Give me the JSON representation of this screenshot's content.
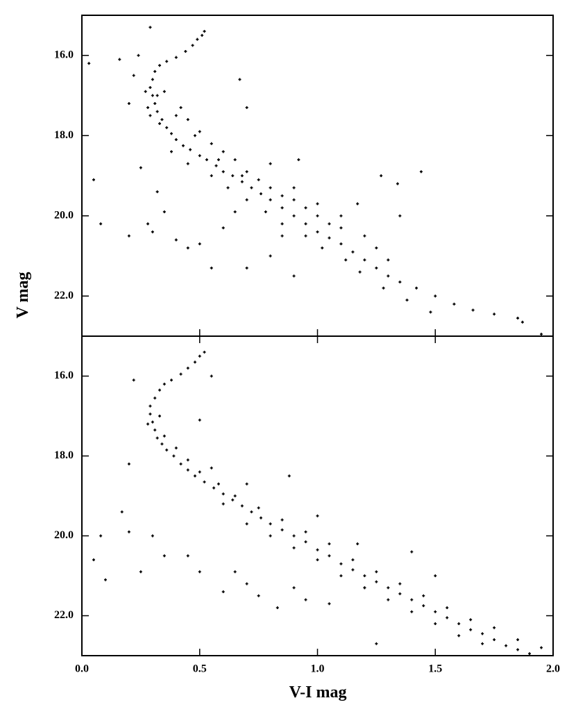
{
  "chart_data": [
    {
      "type": "scatter",
      "ylabel": "V mag",
      "color": "#000000",
      "xlim": [
        0,
        2
      ],
      "ylim": [
        23,
        15
      ],
      "yticks": [
        {
          "value": 16,
          "label": "16.0"
        },
        {
          "value": 18,
          "label": "18.0"
        },
        {
          "value": 20,
          "label": "20.0"
        },
        {
          "value": 22,
          "label": "22.0"
        }
      ],
      "x": [
        0.52,
        0.51,
        0.49,
        0.47,
        0.44,
        0.4,
        0.36,
        0.33,
        0.31,
        0.3,
        0.29,
        0.3,
        0.31,
        0.32,
        0.34,
        0.36,
        0.38,
        0.4,
        0.43,
        0.46,
        0.5,
        0.53,
        0.57,
        0.6,
        0.64,
        0.68,
        0.72,
        0.76,
        0.8,
        0.85,
        0.9,
        0.95,
        1.0,
        1.05,
        1.1,
        1.15,
        1.2,
        1.25,
        1.3,
        1.35,
        1.42,
        1.5,
        1.58,
        1.66,
        1.75,
        1.85,
        1.87,
        1.95,
        0.35,
        0.42,
        0.45,
        0.5,
        0.55,
        0.6,
        0.65,
        0.7,
        0.75,
        0.8,
        0.85,
        0.9,
        0.95,
        1.0,
        1.05,
        1.1,
        0.27,
        0.28,
        0.33,
        0.38,
        0.45,
        0.55,
        0.62,
        0.7,
        0.78,
        0.85,
        0.95,
        1.02,
        1.12,
        1.18,
        1.28,
        1.38,
        1.48,
        0.32,
        0.29,
        0.4,
        0.48,
        0.58,
        0.68,
        0.9,
        1.0,
        1.1,
        1.2,
        1.25,
        1.3,
        0.03,
        0.05,
        0.08,
        0.16,
        0.2,
        0.2,
        0.22,
        0.25,
        0.28,
        0.3,
        0.32,
        0.35,
        0.4,
        0.45,
        0.5,
        0.55,
        0.6,
        0.65,
        0.7,
        0.8,
        0.85,
        0.9,
        0.92,
        1.27,
        1.34,
        1.44,
        1.35,
        1.17,
        0.7,
        0.67,
        0.8,
        0.29,
        0.24
      ],
      "values": [
        15.4,
        15.5,
        15.6,
        15.75,
        15.9,
        16.05,
        16.15,
        16.25,
        16.4,
        16.6,
        16.8,
        17.0,
        17.2,
        17.4,
        17.6,
        17.8,
        17.95,
        18.1,
        18.25,
        18.35,
        18.5,
        18.6,
        18.75,
        18.9,
        19.0,
        19.15,
        19.3,
        19.45,
        19.6,
        19.8,
        20.0,
        20.2,
        20.4,
        20.55,
        20.7,
        20.9,
        21.1,
        21.3,
        21.5,
        21.65,
        21.8,
        22.0,
        22.2,
        22.35,
        22.45,
        22.55,
        22.65,
        22.95,
        16.9,
        17.3,
        17.6,
        17.9,
        18.2,
        18.4,
        18.6,
        18.9,
        19.1,
        19.3,
        19.5,
        19.6,
        19.8,
        20.0,
        20.2,
        20.3,
        16.9,
        17.3,
        17.7,
        18.4,
        18.7,
        19.0,
        19.3,
        19.6,
        19.9,
        20.2,
        20.5,
        20.8,
        21.1,
        21.4,
        21.8,
        22.1,
        22.4,
        17.0,
        17.5,
        17.5,
        18.0,
        18.6,
        19.0,
        19.3,
        19.7,
        20.0,
        20.5,
        20.8,
        21.1,
        16.2,
        19.1,
        20.2,
        16.1,
        17.2,
        20.5,
        16.5,
        18.8,
        20.2,
        20.4,
        19.4,
        19.9,
        20.6,
        20.8,
        20.7,
        21.3,
        20.3,
        19.9,
        21.3,
        21.0,
        20.5,
        21.5,
        18.6,
        19.0,
        19.2,
        18.9,
        20.0,
        19.7,
        17.3,
        16.6,
        18.7,
        15.3,
        16.0
      ]
    },
    {
      "type": "scatter",
      "xlabel": "V-I mag",
      "color": "#000000",
      "xlim": [
        0,
        2
      ],
      "ylim": [
        23,
        15
      ],
      "xticks": [
        {
          "value": 0,
          "label": "0.0"
        },
        {
          "value": 0.5,
          "label": "0.5"
        },
        {
          "value": 1,
          "label": "1.0"
        },
        {
          "value": 1.5,
          "label": "1.5"
        },
        {
          "value": 2,
          "label": "2.0"
        }
      ],
      "yticks": [
        {
          "value": 16,
          "label": "16.0"
        },
        {
          "value": 18,
          "label": "18.0"
        },
        {
          "value": 20,
          "label": "20.0"
        },
        {
          "value": 22,
          "label": "22.0"
        }
      ],
      "x": [
        0.52,
        0.5,
        0.48,
        0.45,
        0.42,
        0.38,
        0.35,
        0.33,
        0.31,
        0.29,
        0.29,
        0.3,
        0.31,
        0.32,
        0.34,
        0.36,
        0.39,
        0.42,
        0.45,
        0.48,
        0.52,
        0.56,
        0.6,
        0.64,
        0.68,
        0.72,
        0.76,
        0.8,
        0.85,
        0.9,
        0.95,
        1.0,
        1.05,
        1.1,
        1.15,
        1.2,
        1.25,
        1.3,
        1.35,
        1.4,
        1.45,
        1.5,
        1.55,
        1.6,
        1.65,
        1.7,
        1.75,
        1.8,
        1.85,
        1.9,
        1.95,
        0.33,
        0.28,
        0.35,
        0.4,
        0.45,
        0.5,
        0.58,
        0.65,
        0.75,
        0.85,
        0.95,
        1.05,
        1.15,
        1.25,
        1.35,
        1.45,
        1.55,
        1.65,
        1.75,
        1.85,
        0.6,
        0.7,
        0.8,
        0.9,
        1.0,
        1.1,
        1.2,
        1.3,
        1.4,
        1.5,
        1.6,
        1.7,
        0.55,
        0.7,
        0.88,
        1.0,
        1.17,
        1.4,
        1.5,
        0.05,
        0.08,
        0.1,
        0.17,
        0.2,
        0.2,
        0.22,
        0.25,
        0.3,
        0.35,
        0.45,
        0.5,
        0.5,
        0.6,
        0.65,
        0.7,
        0.75,
        0.83,
        0.9,
        0.95,
        1.05,
        1.2,
        1.25,
        0.55
      ],
      "values": [
        15.4,
        15.5,
        15.65,
        15.8,
        15.95,
        16.1,
        16.2,
        16.35,
        16.55,
        16.75,
        16.95,
        17.15,
        17.35,
        17.55,
        17.7,
        17.85,
        18.0,
        18.2,
        18.35,
        18.5,
        18.65,
        18.8,
        18.95,
        19.1,
        19.25,
        19.4,
        19.55,
        19.7,
        19.85,
        20.0,
        20.15,
        20.35,
        20.5,
        20.7,
        20.85,
        21.0,
        21.15,
        21.3,
        21.45,
        21.6,
        21.75,
        21.9,
        22.05,
        22.2,
        22.35,
        22.45,
        22.6,
        22.75,
        22.85,
        22.95,
        22.8,
        17.0,
        17.2,
        17.5,
        17.8,
        18.1,
        18.4,
        18.7,
        19.0,
        19.3,
        19.6,
        19.9,
        20.2,
        20.6,
        20.9,
        21.2,
        21.5,
        21.8,
        22.1,
        22.3,
        22.6,
        19.2,
        19.7,
        20.0,
        20.3,
        20.6,
        21.0,
        21.3,
        21.6,
        21.9,
        22.2,
        22.5,
        22.7,
        18.3,
        18.7,
        18.5,
        19.5,
        20.2,
        20.4,
        21.0,
        20.6,
        20.0,
        21.1,
        19.4,
        18.2,
        19.9,
        16.1,
        20.9,
        20.0,
        20.5,
        20.5,
        20.9,
        17.1,
        21.4,
        20.9,
        21.2,
        21.5,
        21.8,
        21.3,
        21.6,
        21.7,
        21.3,
        22.7,
        16.0
      ]
    }
  ]
}
